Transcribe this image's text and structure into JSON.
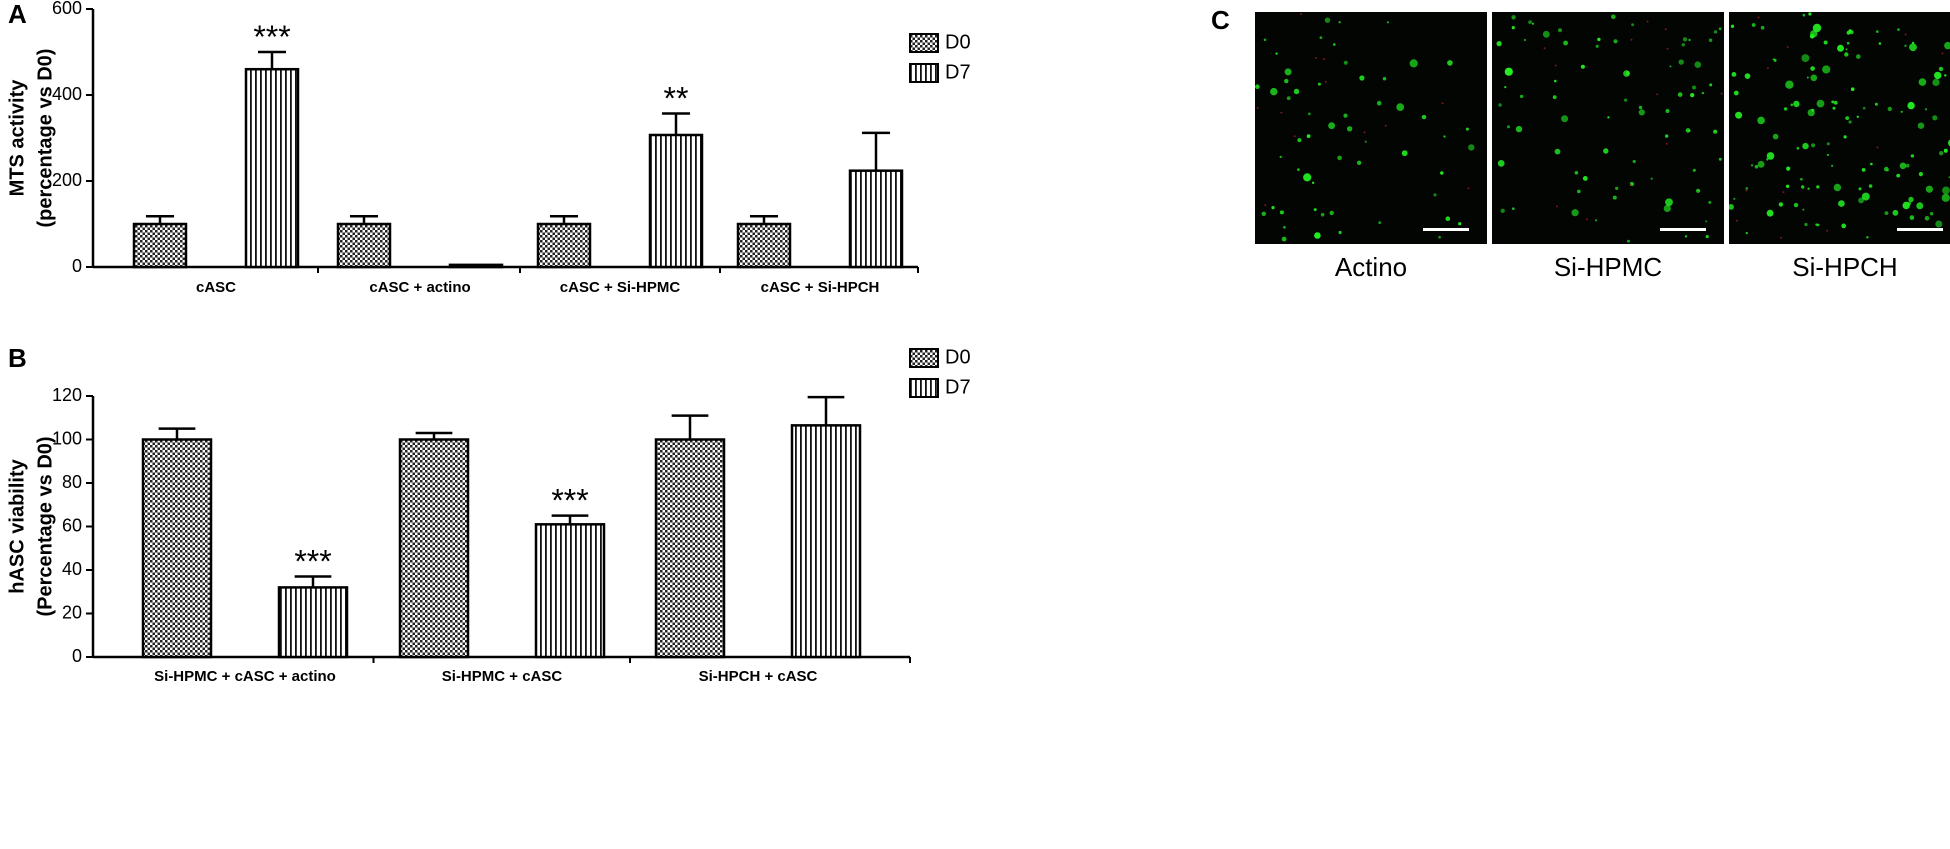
{
  "chart_data": [
    {
      "panel_label": "A",
      "type": "bar",
      "ylabel_lines": [
        "MTS activity",
        "(percentage vs D0)"
      ],
      "xlabel": "",
      "ylim": [
        0,
        600
      ],
      "yticks": [
        0,
        200,
        400,
        600
      ],
      "categories": [
        "cASC",
        "cASC + actino",
        "cASC + Si-HPMC",
        "cASC + Si-HPCH"
      ],
      "series": [
        {
          "name": "D0",
          "pattern": "checker",
          "values": [
            100,
            100,
            100,
            100
          ],
          "errors": [
            18,
            18,
            18,
            18
          ]
        },
        {
          "name": "D7",
          "pattern": "vstripes",
          "values": [
            460,
            5,
            307,
            224
          ],
          "errors": [
            40,
            0,
            50,
            88
          ]
        }
      ],
      "annotations": [
        {
          "category": 0,
          "series": 1,
          "text": "***"
        },
        {
          "category": 2,
          "series": 1,
          "text": "**"
        }
      ],
      "legend_position": "top-right"
    },
    {
      "panel_label": "B",
      "type": "bar",
      "ylabel_lines": [
        "hASC viability",
        "(Percentage vs D0)"
      ],
      "xlabel": "",
      "ylim": [
        0,
        120
      ],
      "yticks": [
        0,
        20,
        40,
        60,
        80,
        100,
        120
      ],
      "categories": [
        "Si-HPMC + cASC + actino",
        "Si-HPMC + cASC",
        "Si-HPCH + cASC"
      ],
      "series": [
        {
          "name": "D0",
          "pattern": "checker",
          "values": [
            100,
            100,
            100
          ],
          "errors": [
            5,
            3,
            11
          ]
        },
        {
          "name": "D7",
          "pattern": "vstripes",
          "values": [
            32,
            61,
            106.5
          ],
          "errors": [
            5,
            4,
            13
          ]
        }
      ],
      "annotations": [
        {
          "category": 0,
          "series": 1,
          "text": "***"
        },
        {
          "category": 1,
          "series": 1,
          "text": "***"
        }
      ],
      "legend_position": "top-right"
    }
  ],
  "panel_c": {
    "label": "C",
    "images": [
      {
        "caption": "Actino",
        "density": "low"
      },
      {
        "caption": "Si-HPMC",
        "density": "medium"
      },
      {
        "caption": "Si-HPCH",
        "density": "high"
      }
    ],
    "colors": {
      "background": "#030503",
      "live_cells": "#22ee22",
      "dead_cells": "#cc2222",
      "scale_bar": "#ffffff"
    }
  }
}
